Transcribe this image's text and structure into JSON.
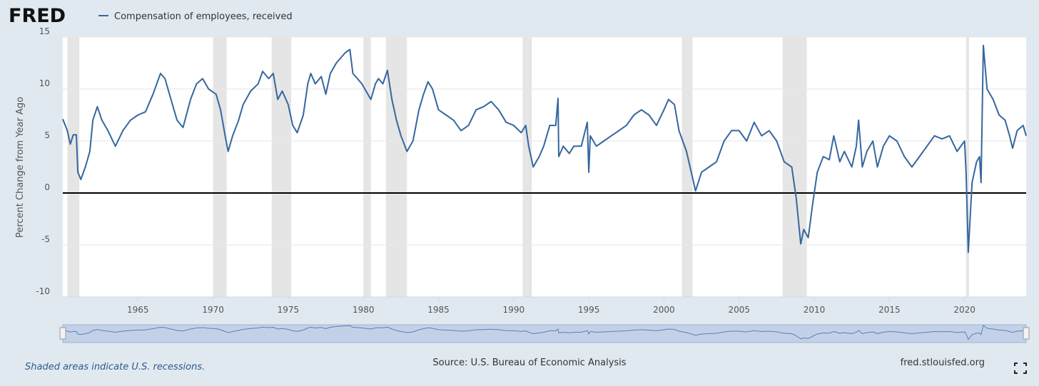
{
  "chart_data": {
    "type": "line",
    "logo": "FRED",
    "ylabel": "Percent Change from Year Ago",
    "note": "Shaded areas indicate U.S. recessions.",
    "source": "Source: U.S. Bureau of Economic Analysis",
    "site": "fred.stlouisfed.org",
    "xlim": [
      1960,
      2024.1
    ],
    "ylim": [
      -10,
      15
    ],
    "xticks": [
      1965,
      1970,
      1975,
      1980,
      1985,
      1990,
      1995,
      2000,
      2005,
      2010,
      2015,
      2020
    ],
    "yticks": [
      -10,
      -5,
      0,
      5,
      10,
      15
    ],
    "grid": true,
    "recessions": [
      [
        1960.3,
        1961.1
      ],
      [
        1970.0,
        1970.9
      ],
      [
        1973.9,
        1975.2
      ],
      [
        1980.0,
        1980.5
      ],
      [
        1981.5,
        1982.9
      ],
      [
        1990.6,
        1991.2
      ],
      [
        2001.2,
        2001.9
      ],
      [
        2007.9,
        2009.5
      ],
      [
        2020.1,
        2020.3
      ]
    ],
    "x": [
      1960.0,
      1960.3,
      1960.5,
      1960.7,
      1960.9,
      1961.0,
      1961.2,
      1961.5,
      1961.8,
      1962.0,
      1962.3,
      1962.6,
      1963.0,
      1963.5,
      1964.0,
      1964.5,
      1965.0,
      1965.5,
      1966.0,
      1966.5,
      1966.8,
      1967.2,
      1967.6,
      1968.0,
      1968.5,
      1968.9,
      1969.3,
      1969.7,
      1970.2,
      1970.5,
      1970.8,
      1971.0,
      1971.3,
      1971.7,
      1972.0,
      1972.5,
      1973.0,
      1973.3,
      1973.7,
      1974.0,
      1974.3,
      1974.6,
      1975.0,
      1975.3,
      1975.6,
      1976.0,
      1976.3,
      1976.5,
      1976.8,
      1977.2,
      1977.5,
      1977.8,
      1978.2,
      1978.8,
      1979.1,
      1979.3,
      1979.6,
      1979.9,
      1980.3,
      1980.5,
      1980.8,
      1981.0,
      1981.3,
      1981.6,
      1981.9,
      1982.2,
      1982.5,
      1982.9,
      1983.3,
      1983.7,
      1984.0,
      1984.3,
      1984.6,
      1985.0,
      1985.5,
      1986.0,
      1986.5,
      1987.0,
      1987.5,
      1988.0,
      1988.5,
      1989.0,
      1989.5,
      1990.0,
      1990.5,
      1990.8,
      1991.0,
      1991.3,
      1991.7,
      1992.0,
      1992.4,
      1992.8,
      1992.95,
      1993.0,
      1993.3,
      1993.7,
      1994.0,
      1994.5,
      1994.9,
      1995.0,
      1995.1,
      1995.5,
      1996.0,
      1996.5,
      1997.0,
      1997.5,
      1998.0,
      1998.5,
      1999.0,
      1999.5,
      2000.0,
      2000.3,
      2000.7,
      2001.0,
      2001.5,
      2001.9,
      2002.1,
      2002.5,
      2003.0,
      2003.5,
      2004.0,
      2004.5,
      2005.0,
      2005.5,
      2006.0,
      2006.5,
      2007.0,
      2007.5,
      2008.0,
      2008.5,
      2008.8,
      2009.1,
      2009.3,
      2009.6,
      2009.9,
      2010.2,
      2010.6,
      2011.0,
      2011.3,
      2011.7,
      2012.0,
      2012.5,
      2012.8,
      2012.95,
      2013.2,
      2013.5,
      2013.9,
      2014.2,
      2014.6,
      2015.0,
      2015.5,
      2016.0,
      2016.5,
      2017.0,
      2017.5,
      2018.0,
      2018.5,
      2019.0,
      2019.5,
      2020.0,
      2020.1,
      2020.25,
      2020.5,
      2020.8,
      2021.0,
      2021.1,
      2021.25,
      2021.5,
      2021.9,
      2022.3,
      2022.7,
      2023.0,
      2023.2,
      2023.5,
      2023.9,
      2024.1
    ],
    "series": [
      {
        "name": "Compensation of employees, received",
        "color": "#35679e",
        "values": [
          7.1,
          6.0,
          4.7,
          5.6,
          5.6,
          2.0,
          1.3,
          2.5,
          4.0,
          7.0,
          8.3,
          7.0,
          6.0,
          4.5,
          6.0,
          7.0,
          7.5,
          7.8,
          9.5,
          11.5,
          11.0,
          9.0,
          7.0,
          6.3,
          9.0,
          10.5,
          11.0,
          10.0,
          9.5,
          8.0,
          5.5,
          4.0,
          5.5,
          7.0,
          8.5,
          9.8,
          10.5,
          11.7,
          11.0,
          11.5,
          9.0,
          9.8,
          8.5,
          6.5,
          5.8,
          7.5,
          10.5,
          11.5,
          10.5,
          11.2,
          9.5,
          11.5,
          12.5,
          13.5,
          13.8,
          11.5,
          11.0,
          10.5,
          9.5,
          9.0,
          10.5,
          11.0,
          10.5,
          11.8,
          9.0,
          7.0,
          5.5,
          4.0,
          5.0,
          8.0,
          9.5,
          10.7,
          10.0,
          8.0,
          7.5,
          7.0,
          6.0,
          6.5,
          8.0,
          8.3,
          8.8,
          8.0,
          6.8,
          6.5,
          5.8,
          6.5,
          4.5,
          2.5,
          3.5,
          4.5,
          6.5,
          6.5,
          9.1,
          3.5,
          4.5,
          3.8,
          4.5,
          4.5,
          6.8,
          2.0,
          5.5,
          4.5,
          5.0,
          5.5,
          6.0,
          6.5,
          7.5,
          8.0,
          7.5,
          6.5,
          8.0,
          9.0,
          8.5,
          6.0,
          4.0,
          1.5,
          0.2,
          2.0,
          2.5,
          3.0,
          5.0,
          6.0,
          6.0,
          5.0,
          6.8,
          5.5,
          6.0,
          5.0,
          3.0,
          2.5,
          -0.5,
          -4.9,
          -3.5,
          -4.3,
          -1.0,
          2.0,
          3.5,
          3.2,
          5.5,
          3.0,
          4.0,
          2.5,
          4.5,
          7.0,
          2.5,
          4.0,
          5.0,
          2.5,
          4.5,
          5.5,
          5.0,
          3.5,
          2.5,
          3.5,
          4.5,
          5.5,
          5.2,
          5.5,
          4.0,
          5.0,
          2.0,
          -5.7,
          1.0,
          3.0,
          3.5,
          1.0,
          14.2,
          10.0,
          9.0,
          7.5,
          7.0,
          5.5,
          4.3,
          6.0,
          6.5,
          5.5
        ]
      }
    ]
  }
}
